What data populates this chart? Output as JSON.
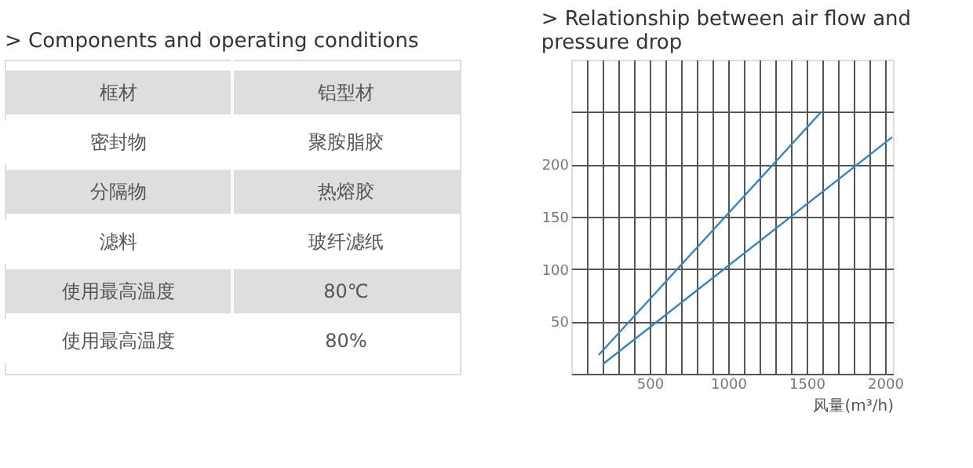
{
  "chart_data": [
    {
      "type": "other",
      "title": "> Components and operating conditions",
      "annotations": [
        "框材",
        "铝型材",
        "密封物",
        "聚胺脂胶",
        "分隔物",
        "热熔胶",
        "滤料",
        "玻纤滤纸",
        "使用最高温度",
        "80℃",
        "使用最高温度",
        "80%"
      ]
    },
    {
      "type": "line",
      "title": "> Relationship between air flow and pressure drop",
      "xlabel": "风量(m³/h)",
      "xlim": [
        0,
        2050
      ],
      "ylim": [
        0,
        300
      ],
      "xticks": [
        {
          "value": 100,
          "label": null
        },
        {
          "value": 200,
          "label": null
        },
        {
          "value": 300,
          "label": null
        },
        {
          "value": 400,
          "label": null
        },
        500,
        {
          "value": 600,
          "label": null
        },
        {
          "value": 700,
          "label": null
        },
        {
          "value": 800,
          "label": null
        },
        {
          "value": 900,
          "label": null
        },
        1000,
        {
          "value": 1100,
          "label": null
        },
        {
          "value": 1200,
          "label": null
        },
        {
          "value": 1300,
          "label": null
        },
        {
          "value": 1400,
          "label": null
        },
        1500,
        {
          "value": 1600,
          "label": null
        },
        {
          "value": 1700,
          "label": null
        },
        {
          "value": 1800,
          "label": null
        },
        {
          "value": 1900,
          "label": null
        },
        2000
      ],
      "yticks": [
        50,
        100,
        150,
        200,
        {
          "value": 250,
          "label": null
        }
      ],
      "grid": true,
      "series": [
        {
          "color": "#3b82b8",
          "x": [
            175,
            1586
          ],
          "values": [
            18,
            249
          ]
        },
        {
          "color": "#3b82b8",
          "x": [
            200,
            2045
          ],
          "values": [
            9,
            226
          ]
        }
      ]
    }
  ]
}
